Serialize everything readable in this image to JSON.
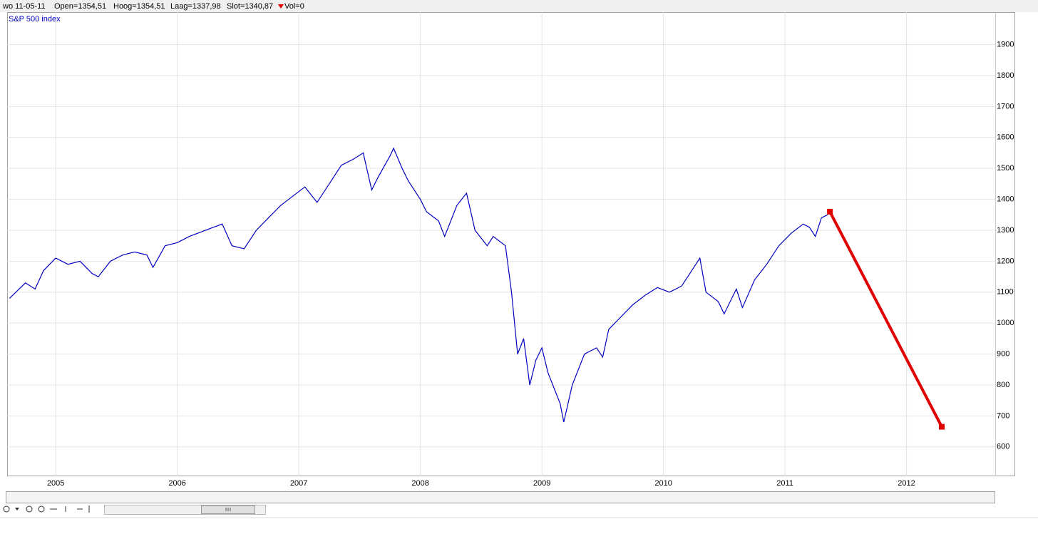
{
  "header": {
    "date": "wo 11-05-11",
    "open": "Open=1354,51",
    "high": "Hoog=1354,51",
    "low": "Laag=1337,98",
    "close": "Slot=1340,87",
    "volume": "Vol=0"
  },
  "chart_data": {
    "type": "line",
    "legend": "top-left",
    "grid": true,
    "xlim": [
      2004.6,
      2012.73
    ],
    "xticks": [
      2005,
      2006,
      2007,
      2008,
      2009,
      2010,
      2011,
      2012
    ],
    "ylim": [
      505,
      2005
    ],
    "yticks": [
      600,
      700,
      800,
      900,
      1000,
      1100,
      1200,
      1300,
      1400,
      1500,
      1600,
      1700,
      1800,
      1900
    ],
    "series": [
      {
        "name": "S&P 500 index",
        "color": "#0000c0",
        "x": [
          2004.62,
          2004.75,
          2004.83,
          2004.9,
          2005.0,
          2005.1,
          2005.2,
          2005.3,
          2005.35,
          2005.45,
          2005.55,
          2005.65,
          2005.75,
          2005.8,
          2005.9,
          2006.0,
          2006.1,
          2006.2,
          2006.3,
          2006.37,
          2006.45,
          2006.55,
          2006.65,
          2006.75,
          2006.85,
          2006.95,
          2007.05,
          2007.15,
          2007.25,
          2007.35,
          2007.45,
          2007.53,
          2007.6,
          2007.65,
          2007.75,
          2007.78,
          2007.85,
          2007.9,
          2008.0,
          2008.05,
          2008.15,
          2008.2,
          2008.3,
          2008.38,
          2008.45,
          2008.55,
          2008.6,
          2008.7,
          2008.75,
          2008.8,
          2008.85,
          2008.9,
          2008.95,
          2009.0,
          2009.05,
          2009.15,
          2009.18,
          2009.25,
          2009.35,
          2009.45,
          2009.5,
          2009.55,
          2009.65,
          2009.75,
          2009.85,
          2009.95,
          2010.05,
          2010.15,
          2010.25,
          2010.3,
          2010.35,
          2010.45,
          2010.5,
          2010.6,
          2010.65,
          2010.75,
          2010.85,
          2010.95,
          2011.05,
          2011.15,
          2011.2,
          2011.25,
          2011.3,
          2011.35
        ],
        "values": [
          1080,
          1130,
          1110,
          1170,
          1210,
          1190,
          1200,
          1160,
          1150,
          1200,
          1220,
          1230,
          1220,
          1180,
          1250,
          1260,
          1280,
          1295,
          1310,
          1320,
          1250,
          1240,
          1300,
          1340,
          1380,
          1410,
          1440,
          1390,
          1450,
          1510,
          1530,
          1550,
          1430,
          1470,
          1540,
          1565,
          1500,
          1460,
          1400,
          1360,
          1330,
          1280,
          1380,
          1420,
          1300,
          1250,
          1280,
          1250,
          1100,
          900,
          950,
          800,
          880,
          920,
          840,
          740,
          680,
          800,
          900,
          920,
          890,
          980,
          1020,
          1060,
          1090,
          1115,
          1100,
          1120,
          1180,
          1210,
          1100,
          1070,
          1030,
          1110,
          1050,
          1140,
          1190,
          1250,
          1290,
          1320,
          1310,
          1280,
          1340,
          1350
        ]
      },
      {
        "color": "#e00000",
        "x": [
          2011.37,
          2012.29
        ],
        "values": [
          1360,
          665
        ]
      }
    ]
  }
}
